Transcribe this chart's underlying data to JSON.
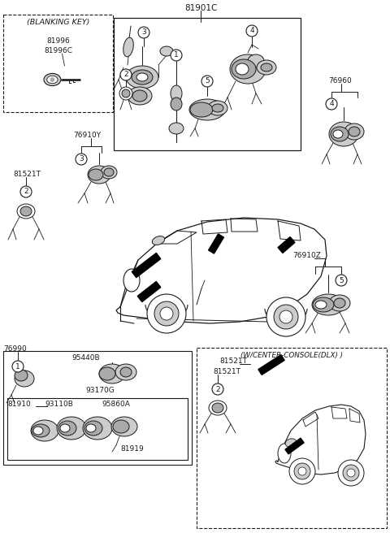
{
  "fig_width": 4.8,
  "fig_height": 6.56,
  "dpi": 100,
  "bg": "#ffffff",
  "lc": "#1a1a1a",
  "labels": {
    "main_ref": "81901C",
    "blanking_key_title": "(BLANKING KEY)",
    "bk_p1": "81996",
    "bk_p2": "81996C",
    "label_76910Y": "76910Y",
    "label_81521T": "81521T",
    "label_76960": "76960",
    "label_76910Z": "76910Z",
    "label_76990": "76990",
    "label_95440B": "95440B",
    "label_93170G": "93170G",
    "label_81910": "81910",
    "label_93110B": "93110B",
    "label_95860A": "95860A",
    "label_81919": "81919",
    "label_wcenter": "(W/CENTER-CONSOLE(DLX) )",
    "label_81521T_r1": "81521T",
    "label_81521T_r2": "81521T"
  }
}
